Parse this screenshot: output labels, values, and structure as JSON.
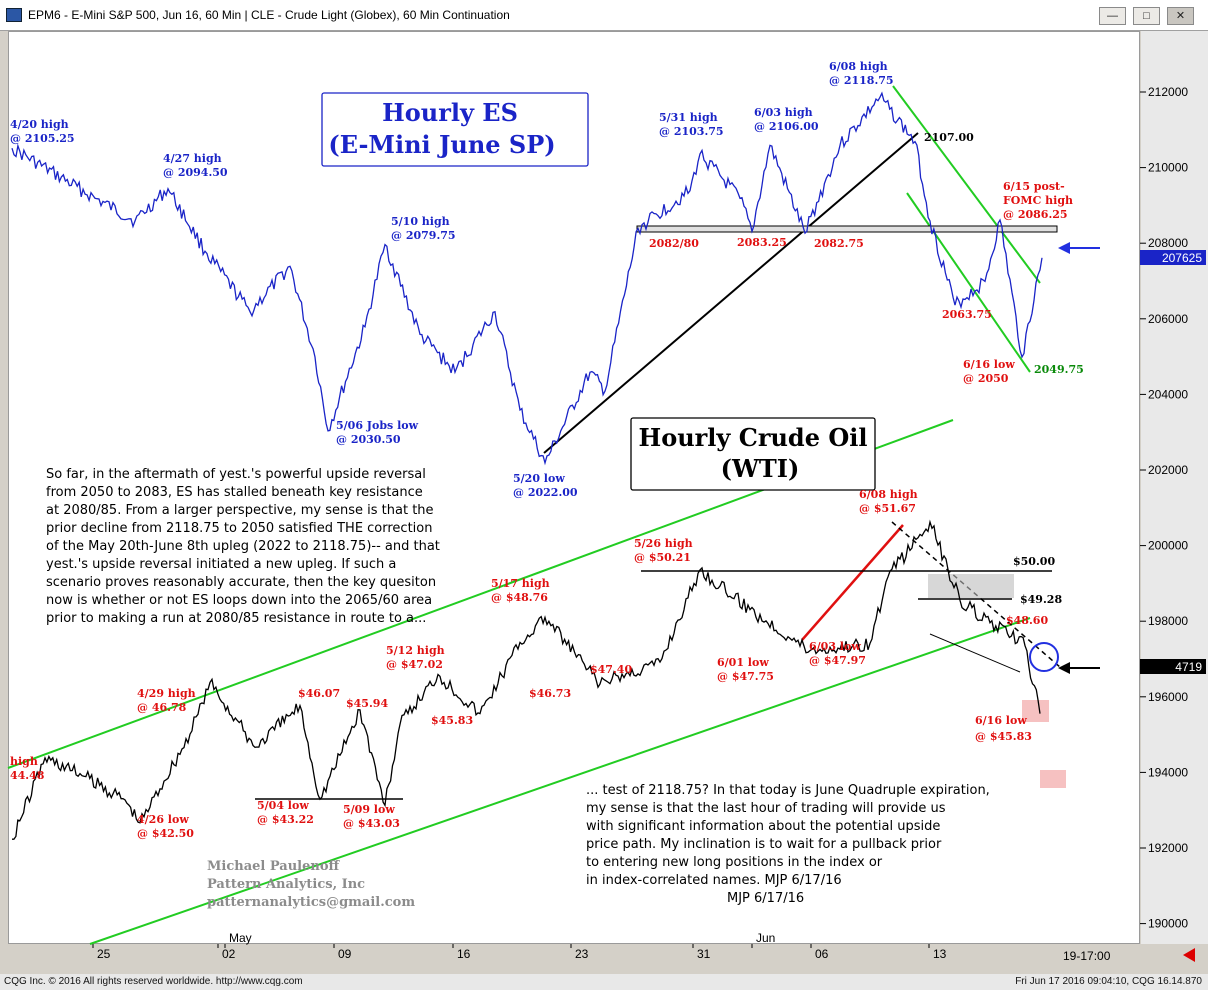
{
  "window": {
    "title": "EPM6 - E-Mini S&P 500, Jun 16, 60 Min  |  CLE - Crude Light (Globex), 60 Min Continuation"
  },
  "footer": {
    "left": "CQG Inc. © 2016 All rights reserved worldwide. http://www.cqg.com",
    "right": "Fri Jun 17 2016 09:04:10, CQG 16.14.870"
  },
  "titles": {
    "es_line1": "Hourly ES",
    "es_line2": "(E-Mini June SP)",
    "oil_line1": "Hourly Crude Oil",
    "oil_line2": "(WTI)"
  },
  "commentary": {
    "left": [
      "So far, in the aftermath of yest.'s powerful upside reversal",
      "from 2050 to  2083, ES has stalled beneath key resistance",
      "at 2080/85. From a larger perspective, my sense is that the",
      "prior decline from 2118.75 to 2050 satisfied THE correction",
      "of the May 20th-June 8th upleg (2022 to 2118.75)-- and that",
      "yest.'s upside reversal initiated a new upleg. If such a",
      "scenario proves reasonably accurate, then the key quesiton",
      "now is whether or not ES loops down into the 2065/60 area",
      "prior to making a run at 2080/85 resistance in route to a..."
    ],
    "right": [
      "... test of 2118.75? In that today is June Quadruple expiration,",
      "my sense is that the last hour of trading will provide us",
      "with significant information about the potential upside",
      "price path. My inclination is to wait for a pullback prior",
      "to entering new long positions in the index or",
      "in index-correlated names. MJP 6/17/16"
    ],
    "signature": "MJP 6/17/16"
  },
  "watermark": [
    "Michael Paulenoff",
    "Pattern Analytics, Inc",
    "patternanalytics@gmail.com"
  ],
  "annotations": {
    "es": [
      {
        "text": "4/20 high",
        "color": "blue"
      },
      {
        "text": "@ 2105.25",
        "color": "blue"
      },
      {
        "text": "4/27 high",
        "color": "blue"
      },
      {
        "text": "@  2094.50",
        "color": "blue"
      },
      {
        "text": "5/10 high",
        "color": "blue"
      },
      {
        "text": "@ 2079.75",
        "color": "blue"
      },
      {
        "text": "5/06 Jobs low",
        "color": "blue"
      },
      {
        "text": "@ 2030.50",
        "color": "blue"
      },
      {
        "text": "5/20 low",
        "color": "blue"
      },
      {
        "text": "@ 2022.00",
        "color": "blue"
      },
      {
        "text": "5/31 high",
        "color": "blue"
      },
      {
        "text": "@ 2103.75",
        "color": "blue"
      },
      {
        "text": "6/03 high",
        "color": "blue"
      },
      {
        "text": "@ 2106.00",
        "color": "blue"
      },
      {
        "text": "6/08 high",
        "color": "blue"
      },
      {
        "text": "@ 2118.75",
        "color": "blue"
      },
      {
        "text": "2107.00",
        "color": "black"
      },
      {
        "text": "2082/80",
        "color": "red"
      },
      {
        "text": "2083.25",
        "color": "red"
      },
      {
        "text": "2082.75",
        "color": "red"
      },
      {
        "text": "6/15 post-",
        "color": "red"
      },
      {
        "text": "FOMC high",
        "color": "red"
      },
      {
        "text": "@ 2086.25",
        "color": "red"
      },
      {
        "text": "2063.75",
        "color": "red"
      },
      {
        "text": "6/16 low",
        "color": "red"
      },
      {
        "text": "@ 2050",
        "color": "red"
      },
      {
        "text": "2049.75",
        "color": "green"
      }
    ],
    "oil": [
      {
        "text": "high",
        "color": "red"
      },
      {
        "text": "44.48",
        "color": "red"
      },
      {
        "text": "4/29 high",
        "color": "red"
      },
      {
        "text": "@ 46.78",
        "color": "red"
      },
      {
        "text": "4/26 low",
        "color": "red"
      },
      {
        "text": "@  $42.50",
        "color": "red"
      },
      {
        "text": "$46.07",
        "color": "red"
      },
      {
        "text": "$45.94",
        "color": "red"
      },
      {
        "text": "5/04 low",
        "color": "red"
      },
      {
        "text": "@ $43.22",
        "color": "red"
      },
      {
        "text": "5/09 low",
        "color": "red"
      },
      {
        "text": "@ $43.03",
        "color": "red"
      },
      {
        "text": "5/12 high",
        "color": "red"
      },
      {
        "text": "@ $47.02",
        "color": "red"
      },
      {
        "text": "$45.83",
        "color": "red"
      },
      {
        "text": "5/17 high",
        "color": "red"
      },
      {
        "text": "@ $48.76",
        "color": "red"
      },
      {
        "text": "$46.73",
        "color": "red"
      },
      {
        "text": "5/26 high",
        "color": "red"
      },
      {
        "text": "@ $50.21",
        "color": "red"
      },
      {
        "text": "$47.40",
        "color": "red"
      },
      {
        "text": "6/01 low",
        "color": "red"
      },
      {
        "text": "@ $47.75",
        "color": "red"
      },
      {
        "text": "6/03 low",
        "color": "red"
      },
      {
        "text": "@ $47.97",
        "color": "red"
      },
      {
        "text": "6/08 high",
        "color": "red"
      },
      {
        "text": "@ $51.67",
        "color": "red"
      },
      {
        "text": "$50.00",
        "color": "black"
      },
      {
        "text": "$49.28",
        "color": "black"
      },
      {
        "text": "$48.60",
        "color": "red"
      },
      {
        "text": "6/16 low",
        "color": "red"
      },
      {
        "text": "@ $45.83",
        "color": "red"
      }
    ]
  },
  "price_tags": {
    "es_last": "207625",
    "oil_last": "4719"
  },
  "time_axis": {
    "extra_label": "19-17:00"
  },
  "chart_data": [
    {
      "type": "line",
      "title": "Hourly ES (E-Mini June SP)",
      "x_ticks": [
        "25",
        "May",
        "02",
        "09",
        "16",
        "23",
        "Jun",
        "31",
        "06",
        "13"
      ],
      "y_ticks": [
        "212000",
        "210000",
        "208000",
        "206000",
        "204000",
        "202000",
        "200000",
        "198000",
        "196000",
        "194000",
        "192000",
        "190000"
      ],
      "series": [
        {
          "color": "#1a24c7",
          "points": [
            [
              "4/20",
              2105.25
            ],
            [
              "4/22",
              2092
            ],
            [
              "4/25",
              2086
            ],
            [
              "4/27",
              2094.5
            ],
            [
              "4/28",
              2078
            ],
            [
              "4/29",
              2062
            ],
            [
              "5/02",
              2074
            ],
            [
              "5/04",
              2050
            ],
            [
              "5/06",
              2030.5
            ],
            [
              "5/09",
              2058
            ],
            [
              "5/10",
              2079.75
            ],
            [
              "5/12",
              2056
            ],
            [
              "5/13",
              2046
            ],
            [
              "5/17",
              2062
            ],
            [
              "5/18",
              2036
            ],
            [
              "5/20",
              2022
            ],
            [
              "5/23",
              2046
            ],
            [
              "5/25",
              2041
            ],
            [
              "5/26",
              2084
            ],
            [
              "5/27",
              2094
            ],
            [
              "5/31",
              2103.75
            ],
            [
              "6/01",
              2092
            ],
            [
              "6/02",
              2083.25
            ],
            [
              "6/03",
              2106
            ],
            [
              "6/06",
              2082.75
            ],
            [
              "6/07",
              2106
            ],
            [
              "6/08",
              2118.75
            ],
            [
              "6/09",
              2107
            ],
            [
              "6/10",
              2086
            ],
            [
              "6/13",
              2063.75
            ],
            [
              "6/14",
              2070
            ],
            [
              "6/15",
              2086.25
            ],
            [
              "6/16",
              2050
            ],
            [
              "6/17",
              2076.25
            ]
          ]
        }
      ]
    },
    {
      "type": "line",
      "title": "Hourly Crude Oil (WTI)",
      "series": [
        {
          "color": "#000000",
          "points": [
            [
              "4/19",
              42.0
            ],
            [
              "4/20",
              44.48
            ],
            [
              "4/22",
              44.0
            ],
            [
              "4/25",
              43.2
            ],
            [
              "4/26",
              42.5
            ],
            [
              "4/27",
              45.2
            ],
            [
              "4/29",
              46.78
            ],
            [
              "5/02",
              44.8
            ],
            [
              "5/03",
              46.07
            ],
            [
              "5/04",
              43.22
            ],
            [
              "5/06",
              45.94
            ],
            [
              "5/09",
              43.03
            ],
            [
              "5/11",
              45.5
            ],
            [
              "5/12",
              47.02
            ],
            [
              "5/13",
              45.83
            ],
            [
              "5/16",
              48.0
            ],
            [
              "5/17",
              48.76
            ],
            [
              "5/20",
              46.73
            ],
            [
              "5/24",
              47.4
            ],
            [
              "5/26",
              50.21
            ],
            [
              "5/30",
              49.0
            ],
            [
              "6/01",
              47.75
            ],
            [
              "6/03",
              47.97
            ],
            [
              "6/06",
              50.0
            ],
            [
              "6/08",
              51.67
            ],
            [
              "6/10",
              49.28
            ],
            [
              "6/13",
              48.6
            ],
            [
              "6/14",
              47.9
            ],
            [
              "6/16",
              45.83
            ],
            [
              "6/17",
              47.19
            ]
          ]
        }
      ]
    }
  ]
}
